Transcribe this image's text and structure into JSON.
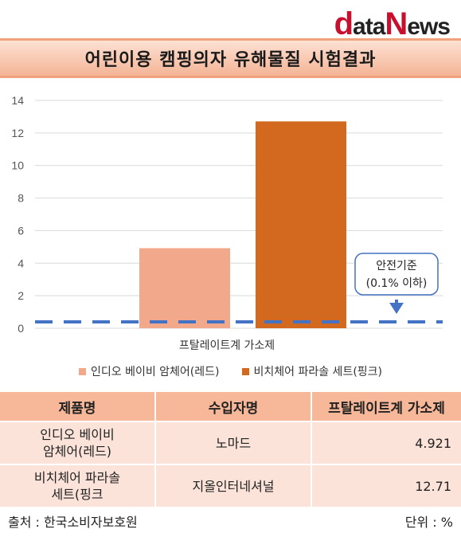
{
  "header": {
    "logo_d": "d",
    "logo_ata": "ata",
    "logo_n": "N",
    "logo_ews": "ews"
  },
  "banner": {
    "title": "어린이용 캠핑의자 유해물질 시험결과"
  },
  "chart_data": {
    "type": "bar",
    "categories": [
      "프탈레이트계 가소제"
    ],
    "series": [
      {
        "name": "인디오 베이비 암체어(레드)",
        "values": [
          4.921
        ],
        "color": "#f2a88b"
      },
      {
        "name": "비치체어 파라솔 세트(핑크)",
        "values": [
          12.71
        ],
        "color": "#d2691e"
      }
    ],
    "ylim": [
      0,
      14
    ],
    "yticks": [
      0,
      2,
      4,
      6,
      8,
      10,
      12,
      14
    ],
    "grid": true,
    "legend_position": "bottom",
    "reference_line": {
      "value": 0.1,
      "color": "#4472c4",
      "style": "dashed"
    },
    "annotation": {
      "line1": "안전기준",
      "line2": "(0.1% 이하)"
    }
  },
  "table": {
    "headers": [
      "제품명",
      "수입자명",
      "프탈레이트계 가소제"
    ],
    "rows": [
      {
        "name_line1": "인디오 베이비",
        "name_line2": "암체어(레드)",
        "importer": "노마드",
        "value": "4.921"
      },
      {
        "name_line1": "비치체어 파라솔",
        "name_line2": "세트(핑크",
        "importer": "지올인터네셔널",
        "value": "12.71"
      }
    ]
  },
  "footer": {
    "source": "출처 : 한국소비자보호원",
    "unit": "단위 : %"
  }
}
